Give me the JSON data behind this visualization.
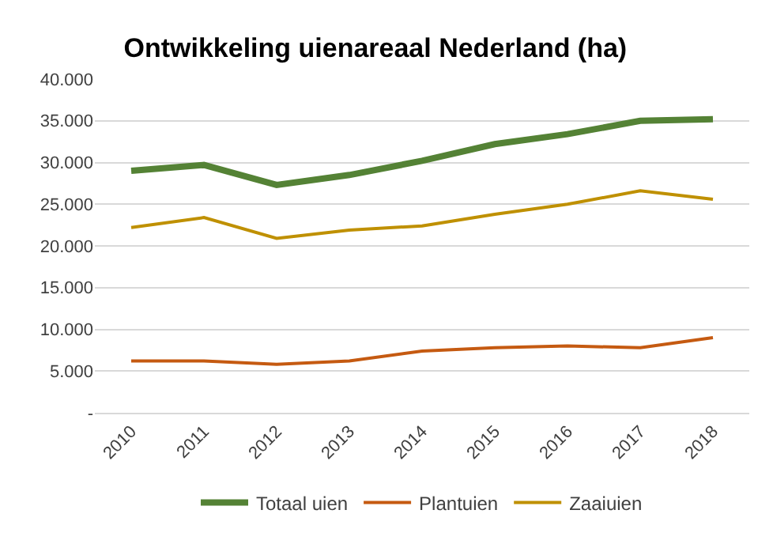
{
  "chart_data": {
    "type": "line",
    "title": "Ontwikkeling uienareaal Nederland (ha)",
    "categories": [
      "2010",
      "2011",
      "2012",
      "2013",
      "2014",
      "2015",
      "2016",
      "2017",
      "2018"
    ],
    "series": [
      {
        "name": "Totaal uien",
        "color": "#548235",
        "values": [
          29000,
          29700,
          27300,
          28500,
          30200,
          32200,
          33400,
          35000,
          35200
        ]
      },
      {
        "name": "Plantuien",
        "color": "#c55a11",
        "values": [
          6200,
          6200,
          5800,
          6200,
          7400,
          7800,
          8000,
          7800,
          9000
        ]
      },
      {
        "name": "Zaaiuien",
        "color": "#bf9000",
        "values": [
          22200,
          23400,
          20900,
          21900,
          22400,
          23800,
          25000,
          26600,
          25600
        ]
      }
    ],
    "ylim": [
      0,
      40000
    ],
    "yticks": [
      {
        "value": 0,
        "label": "-"
      },
      {
        "value": 5000,
        "label": "5.000"
      },
      {
        "value": 10000,
        "label": "10.000"
      },
      {
        "value": 15000,
        "label": "15.000"
      },
      {
        "value": 20000,
        "label": "20.000"
      },
      {
        "value": 25000,
        "label": "25.000"
      },
      {
        "value": 30000,
        "label": "30.000"
      },
      {
        "value": 35000,
        "label": "35.000"
      },
      {
        "value": 40000,
        "label": "40.000"
      }
    ],
    "grid": "y",
    "legend": "bottom",
    "marker": "none",
    "line_style": "solid"
  }
}
